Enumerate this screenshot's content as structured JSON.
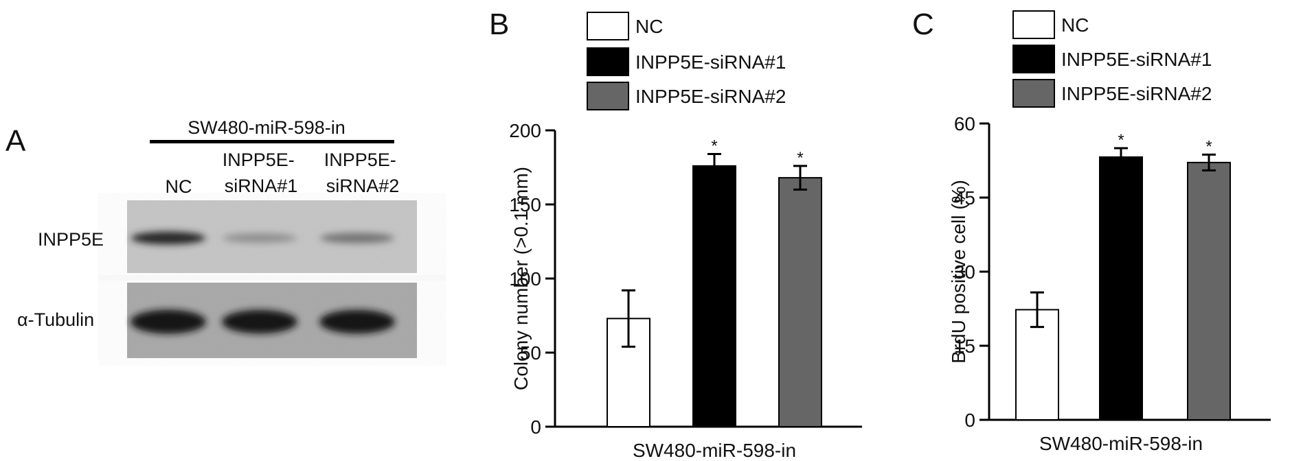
{
  "panelA": {
    "letter": "A",
    "header": "SW480-miR-598-in",
    "lanes": [
      {
        "lines": [
          "NC"
        ]
      },
      {
        "lines": [
          "INPP5E-",
          "siRNA#1"
        ]
      },
      {
        "lines": [
          "INPP5E-",
          "siRNA#2"
        ]
      }
    ],
    "rows": [
      {
        "label": "INPP5E",
        "intensities": [
          0.85,
          0.3,
          0.45
        ]
      },
      {
        "label": "α-Tubulin",
        "intensities": [
          0.95,
          0.92,
          0.93
        ]
      }
    ]
  },
  "chart_data": [
    {
      "type": "bar",
      "panel": "B",
      "ylabel": "Colony number (>0.1 mm)",
      "xlabel": "SW480-miR-598-in",
      "ylim": [
        0,
        200
      ],
      "yticks": [
        "0",
        "50",
        "100",
        "150",
        "200"
      ],
      "categories": [
        "NC",
        "INPP5E-siRNA#1",
        "INPP5E-siRNA#2"
      ],
      "values": [
        73,
        176,
        168
      ],
      "errors": [
        19,
        8,
        8
      ],
      "significance": [
        "",
        "*",
        "*"
      ],
      "colors": [
        "#ffffff",
        "#000000",
        "#666666"
      ],
      "legend": [
        "NC",
        "INPP5E-siRNA#1",
        "INPP5E-siRNA#2"
      ],
      "legend_position": "top"
    },
    {
      "type": "bar",
      "panel": "C",
      "ylabel": "BrdU positive cell (%)",
      "xlabel": "SW480-miR-598-in",
      "ylim": [
        0,
        60
      ],
      "yticks": [
        "0",
        "15",
        "30",
        "45",
        "60"
      ],
      "categories": [
        "NC",
        "INPP5E-siRNA#1",
        "INPP5E-siRNA#2"
      ],
      "values": [
        22.3,
        53.2,
        52.1
      ],
      "errors": [
        3.5,
        1.8,
        1.6
      ],
      "significance": [
        "",
        "*",
        "*"
      ],
      "colors": [
        "#ffffff",
        "#000000",
        "#666666"
      ],
      "legend": [
        "NC",
        "INPP5E-siRNA#1",
        "INPP5E-siRNA#2"
      ],
      "legend_position": "top"
    }
  ]
}
